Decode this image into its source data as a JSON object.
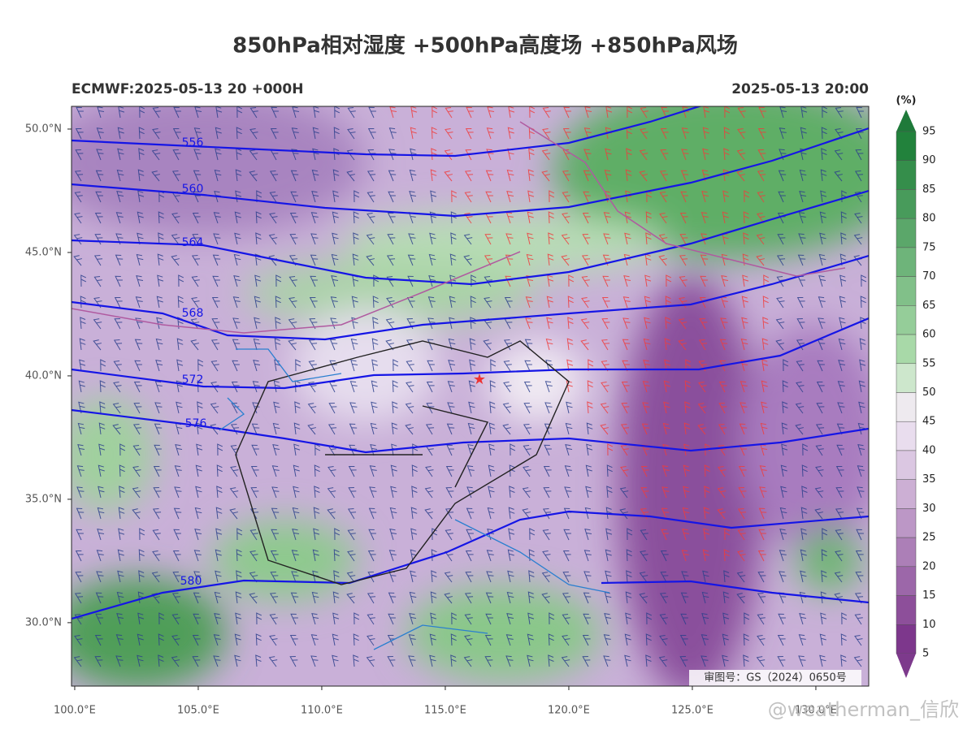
{
  "map": {
    "title": "850hPa相对湿度 +500hPa高度场 +850hPa风场",
    "left_label": "ECMWF:2025-05-13 20 +000H",
    "right_label": "2025-05-13 20:00",
    "xlim": [
      99.87,
      132.14
    ],
    "ylim": [
      27.43,
      50.92
    ],
    "xticks": [
      {
        "value": 100,
        "label": "100.0°E"
      },
      {
        "value": 105,
        "label": "105.0°E"
      },
      {
        "value": 110,
        "label": "110.0°E"
      },
      {
        "value": 115,
        "label": "115.0°E"
      },
      {
        "value": 120,
        "label": "120.0°E"
      },
      {
        "value": 125,
        "label": "125.0°E"
      },
      {
        "value": 130,
        "label": "130.0°E"
      }
    ],
    "yticks": [
      {
        "value": 30,
        "label": "30.0°N"
      },
      {
        "value": 35,
        "label": "35.0°N"
      },
      {
        "value": 40,
        "label": "40.0°N"
      },
      {
        "value": 45,
        "label": "45.0°N"
      },
      {
        "value": 50,
        "label": "50.0°N"
      }
    ],
    "contours": [
      556,
      560,
      564,
      568,
      572,
      576,
      580
    ],
    "colorbar": {
      "unit": "(%)",
      "levels": [
        95,
        90,
        85,
        80,
        75,
        70,
        65,
        60,
        55,
        50,
        45,
        40,
        35,
        30,
        25,
        20,
        15,
        10,
        5
      ]
    },
    "map_note": "审图号：GS（2024）0650号",
    "watermark": "@weatherman_信欣"
  }
}
